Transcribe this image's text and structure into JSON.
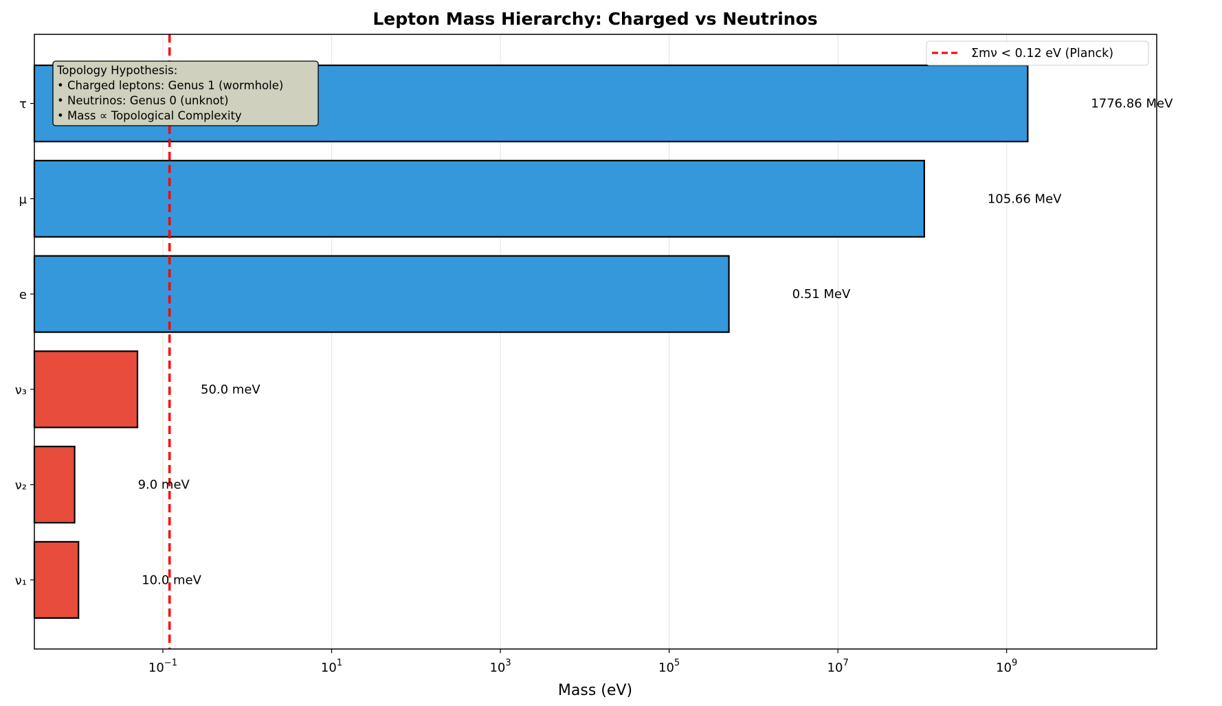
{
  "chart_data": {
    "type": "bar",
    "orientation": "horizontal",
    "title": "Lepton Mass Hierarchy: Charged vs Neutrinos",
    "xlabel": "Mass (eV)",
    "ylabel": "",
    "xscale": "log",
    "xlim": [
      0.003,
      60000000000
    ],
    "x_ticks": [
      {
        "value": 0.1,
        "base": "10",
        "exp": "−1"
      },
      {
        "value": 10,
        "base": "10",
        "exp": "1"
      },
      {
        "value": 1000,
        "base": "10",
        "exp": "3"
      },
      {
        "value": 100000,
        "base": "10",
        "exp": "5"
      },
      {
        "value": 10000000,
        "base": "10",
        "exp": "7"
      },
      {
        "value": 1000000000,
        "base": "10",
        "exp": "9"
      }
    ],
    "grid": "x",
    "categories": [
      "ν₁",
      "ν₂",
      "ν₃",
      "e",
      "μ",
      "τ"
    ],
    "values": [
      0.01,
      0.009,
      0.05,
      510998.95,
      105658375,
      1776860000
    ],
    "value_labels": [
      "10.0 meV",
      "9.0 meV",
      "50.0 meV",
      "0.51 MeV",
      "105.66 MeV",
      "1776.86 MeV"
    ],
    "bar_colors": [
      "#e74c3c",
      "#e74c3c",
      "#e74c3c",
      "#3498db",
      "#3498db",
      "#3498db"
    ],
    "reference_line": {
      "value": 0.12,
      "label": "Σmν < 0.12 eV (Planck)",
      "color": "#ff0000",
      "style": "dashed"
    },
    "legend": {
      "position": "top-right",
      "entries": [
        "Σmν < 0.12 eV (Planck)"
      ]
    },
    "annotation": {
      "position": "top-left",
      "lines": [
        "Topology Hypothesis:",
        "• Charged leptons: Genus 1 (wormhole)",
        "• Neutrinos: Genus 0 (unknot)",
        "• Mass ∝ Topological Complexity"
      ],
      "background": "#cfd0bd"
    }
  }
}
